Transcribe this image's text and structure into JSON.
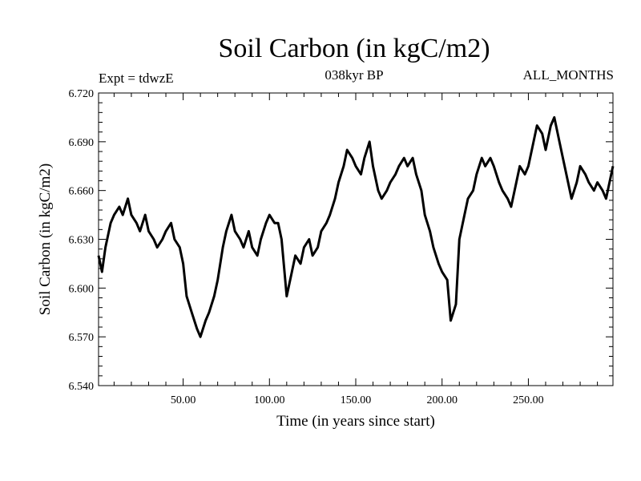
{
  "header": {
    "title": "Soil Carbon (in kgC/m2)",
    "experiment": "Expt = tdwzE",
    "period": "038kyr BP",
    "months": "ALL_MONTHS"
  },
  "chart_data": {
    "type": "line",
    "title": "Soil Carbon (in kgC/m2)",
    "xlabel": "Time (in years since start)",
    "ylabel": "Soil Carbon (in kgC/m2)",
    "xlim": [
      1,
      299
    ],
    "ylim": [
      6.54,
      6.72
    ],
    "x_ticks": [
      50,
      100,
      150,
      200,
      250
    ],
    "x_tick_labels": [
      "50.00",
      "100.00",
      "150.00",
      "200.00",
      "250.00"
    ],
    "y_ticks": [
      6.54,
      6.57,
      6.6,
      6.63,
      6.66,
      6.69,
      6.72
    ],
    "y_tick_labels": [
      "6.540",
      "6.570",
      "6.600",
      "6.630",
      "6.660",
      "6.690",
      "6.720"
    ],
    "grid": false,
    "line_color": "#000000",
    "series": [
      {
        "x": [
          1,
          3,
          5,
          8,
          10,
          13,
          15,
          18,
          20,
          23,
          25,
          28,
          30,
          33,
          35,
          38,
          40,
          43,
          45,
          48,
          50,
          52,
          55,
          58,
          60,
          63,
          65,
          68,
          70,
          73,
          75,
          78,
          80,
          83,
          85,
          88,
          90,
          93,
          95,
          98,
          100,
          103,
          105,
          107,
          110,
          113,
          115,
          118,
          120,
          123,
          125,
          128,
          130,
          133,
          135,
          138,
          140,
          143,
          145,
          148,
          150,
          153,
          155,
          158,
          160,
          163,
          165,
          168,
          170,
          173,
          175,
          178,
          180,
          183,
          185,
          188,
          190,
          193,
          195,
          198,
          200,
          203,
          205,
          208,
          210,
          213,
          215,
          218,
          220,
          223,
          225,
          228,
          230,
          233,
          235,
          238,
          240,
          243,
          245,
          248,
          250,
          253,
          255,
          258,
          260,
          263,
          265,
          268,
          270,
          273,
          275,
          278,
          280,
          283,
          285,
          288,
          290,
          293,
          295,
          297,
          299
        ],
        "values": [
          6.62,
          6.61,
          6.625,
          6.64,
          6.645,
          6.65,
          6.645,
          6.655,
          6.645,
          6.64,
          6.635,
          6.645,
          6.635,
          6.63,
          6.625,
          6.63,
          6.635,
          6.64,
          6.63,
          6.625,
          6.615,
          6.595,
          6.585,
          6.575,
          6.57,
          6.58,
          6.585,
          6.595,
          6.605,
          6.625,
          6.635,
          6.645,
          6.635,
          6.63,
          6.625,
          6.635,
          6.625,
          6.62,
          6.63,
          6.64,
          6.645,
          6.64,
          6.64,
          6.63,
          6.595,
          6.61,
          6.62,
          6.615,
          6.625,
          6.63,
          6.62,
          6.625,
          6.635,
          6.64,
          6.645,
          6.655,
          6.665,
          6.675,
          6.685,
          6.68,
          6.675,
          6.67,
          6.68,
          6.69,
          6.675,
          6.66,
          6.655,
          6.66,
          6.665,
          6.67,
          6.675,
          6.68,
          6.675,
          6.68,
          6.67,
          6.66,
          6.645,
          6.635,
          6.625,
          6.615,
          6.61,
          6.605,
          6.58,
          6.59,
          6.63,
          6.645,
          6.655,
          6.66,
          6.67,
          6.68,
          6.675,
          6.68,
          6.675,
          6.665,
          6.66,
          6.655,
          6.65,
          6.665,
          6.675,
          6.67,
          6.675,
          6.69,
          6.7,
          6.695,
          6.685,
          6.7,
          6.705,
          6.69,
          6.68,
          6.665,
          6.655,
          6.665,
          6.675,
          6.67,
          6.665,
          6.66,
          6.665,
          6.66,
          6.655,
          6.665,
          6.675
        ]
      }
    ]
  }
}
